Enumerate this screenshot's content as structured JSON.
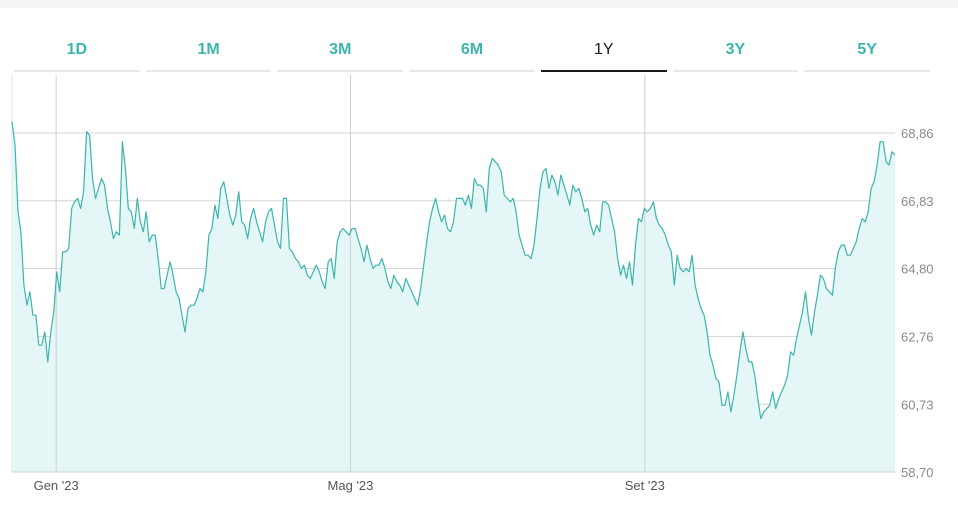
{
  "tabs": [
    {
      "label": "1D",
      "active": false
    },
    {
      "label": "1M",
      "active": false
    },
    {
      "label": "3M",
      "active": false
    },
    {
      "label": "6M",
      "active": false
    },
    {
      "label": "1Y",
      "active": true
    },
    {
      "label": "3Y",
      "active": false
    },
    {
      "label": "5Y",
      "active": false
    }
  ],
  "colors": {
    "accent": "#3bb5ad",
    "fill": "#e4f6f6",
    "grid": "#d6d6d6",
    "active_tab": "#1a1a1a"
  },
  "chart_data": {
    "type": "area",
    "y_tick_labels": [
      "58,70",
      "60,73",
      "62,76",
      "64,80",
      "66,83",
      "68,86"
    ],
    "y_ticks": [
      58.7,
      60.73,
      62.76,
      64.8,
      66.83,
      68.86
    ],
    "ylim": [
      58.7,
      70.6
    ],
    "x_tick_labels": [
      "Gen '23",
      "Mag '23",
      "Set '23"
    ],
    "x_tick_positions": [
      10,
      110,
      210
    ],
    "xlim": [
      -5,
      295
    ],
    "grid": true,
    "values": [
      69.2,
      68.5,
      66.5,
      65.9,
      64.3,
      63.7,
      64.1,
      63.4,
      63.4,
      62.5,
      62.5,
      62.9,
      62.0,
      62.9,
      63.5,
      64.7,
      64.1,
      65.3,
      65.3,
      65.4,
      66.6,
      66.8,
      66.9,
      66.6,
      67.1,
      68.9,
      68.8,
      67.5,
      66.9,
      67.2,
      67.5,
      67.3,
      66.6,
      66.2,
      65.7,
      65.9,
      65.8,
      68.6,
      67.8,
      66.6,
      66.5,
      66.0,
      66.9,
      66.2,
      65.9,
      66.5,
      65.6,
      65.8,
      65.8,
      65.1,
      64.2,
      64.2,
      64.6,
      65.0,
      64.6,
      64.1,
      63.9,
      63.4,
      62.9,
      63.6,
      63.7,
      63.7,
      63.9,
      64.2,
      64.1,
      64.7,
      65.8,
      66.0,
      66.7,
      66.3,
      67.2,
      67.4,
      66.9,
      66.4,
      66.1,
      66.4,
      67.1,
      66.2,
      66.1,
      65.7,
      66.3,
      66.6,
      66.2,
      65.9,
      65.6,
      66.2,
      66.5,
      66.6,
      66.1,
      65.6,
      65.4,
      66.9,
      66.9,
      65.4,
      65.3,
      65.1,
      65.0,
      64.8,
      64.9,
      64.6,
      64.5,
      64.7,
      64.9,
      64.7,
      64.4,
      64.2,
      65.0,
      65.1,
      64.5,
      65.6,
      65.9,
      66.0,
      65.9,
      65.8,
      66.0,
      66.0,
      65.7,
      65.4,
      65.0,
      65.5,
      65.1,
      64.8,
      64.9,
      64.9,
      65.1,
      64.8,
      64.4,
      64.2,
      64.6,
      64.4,
      64.3,
      64.1,
      64.5,
      64.3,
      64.1,
      63.9,
      63.7,
      64.2,
      64.9,
      65.6,
      66.2,
      66.6,
      66.9,
      66.5,
      66.2,
      66.4,
      66.0,
      65.9,
      66.2,
      66.9,
      66.9,
      66.9,
      66.7,
      67.0,
      66.6,
      67.5,
      67.3,
      67.3,
      67.2,
      66.5,
      67.8,
      68.1,
      68.0,
      67.9,
      67.7,
      67.0,
      66.9,
      66.8,
      66.9,
      66.5,
      65.8,
      65.5,
      65.2,
      65.2,
      65.1,
      65.5,
      66.3,
      67.2,
      67.7,
      67.8,
      67.2,
      67.6,
      67.4,
      67.0,
      67.6,
      67.3,
      67.0,
      66.7,
      67.3,
      67.1,
      67.2,
      66.9,
      66.5,
      66.6,
      66.1,
      65.8,
      66.1,
      65.9,
      66.8,
      66.8,
      66.7,
      66.3,
      65.9,
      65.1,
      64.6,
      64.9,
      64.5,
      65.0,
      64.3,
      65.5,
      66.3,
      66.2,
      66.6,
      66.5,
      66.6,
      66.8,
      66.3,
      66.1,
      66.0,
      65.8,
      65.5,
      65.3,
      64.3,
      65.2,
      64.8,
      64.7,
      64.8,
      64.7,
      65.2,
      64.3,
      63.9,
      63.6,
      63.4,
      62.9,
      62.2,
      61.9,
      61.5,
      61.4,
      60.7,
      60.7,
      61.1,
      60.5,
      61.0,
      61.6,
      62.3,
      62.9,
      62.4,
      62.0,
      62.0,
      61.6,
      60.9,
      60.3,
      60.5,
      60.6,
      60.7,
      61.1,
      60.6,
      60.9,
      61.1,
      61.3,
      61.6,
      62.3,
      62.2,
      62.7,
      63.1,
      63.5,
      64.1,
      63.3,
      62.8,
      63.5,
      64.0,
      64.6,
      64.5,
      64.2,
      64.1,
      64.0,
      64.8,
      65.3,
      65.5,
      65.5,
      65.2,
      65.2,
      65.4,
      65.6,
      66.0,
      66.3,
      66.2,
      66.5,
      67.2,
      67.4,
      67.9,
      68.6,
      68.6,
      68.0,
      67.9,
      68.3,
      68.2
    ]
  }
}
